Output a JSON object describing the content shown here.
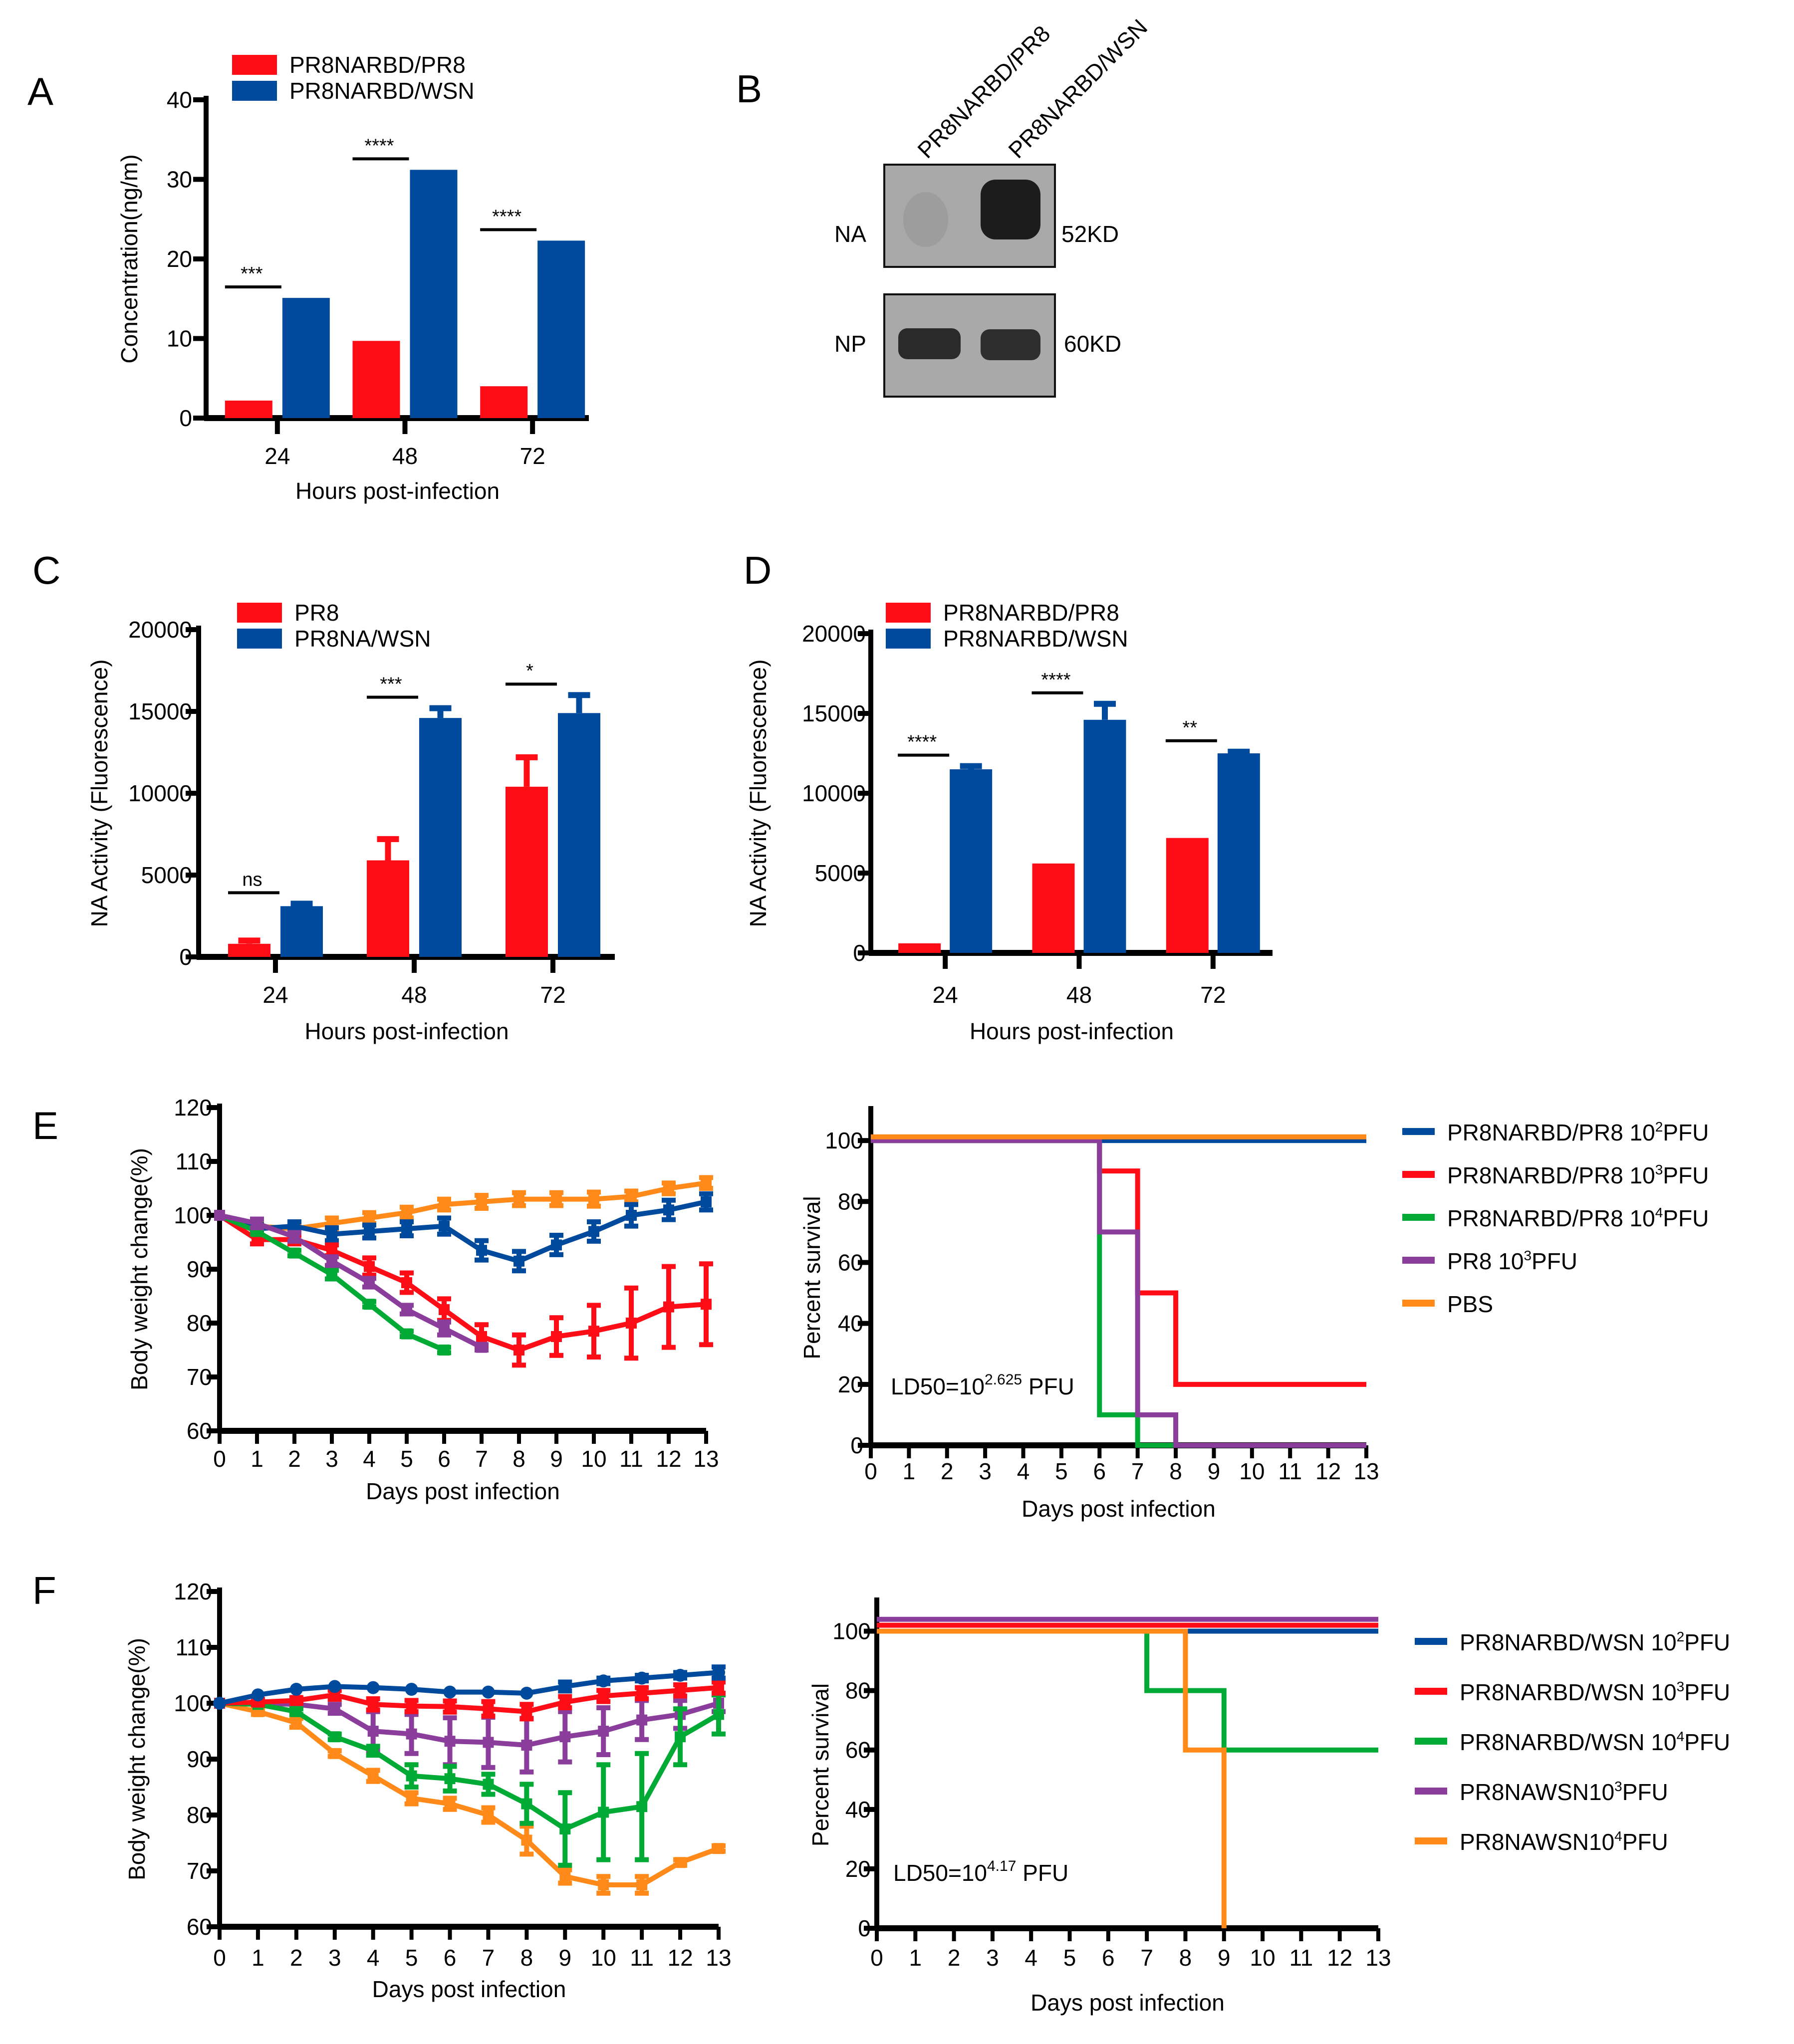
{
  "figure": {
    "panels": [
      "A",
      "B",
      "C",
      "D",
      "E",
      "F"
    ]
  },
  "colors": {
    "red": "#ff0d16",
    "blue": "#004a9e",
    "green": "#00aa34",
    "purple": "#8b3d9c",
    "orange": "#ff8a1a"
  },
  "blot": {
    "letter": "B",
    "lanes": [
      "PR8NARBD/PR8",
      "PR8NARBD/WSN"
    ],
    "rows": [
      {
        "protein": "NA",
        "size": "52KD",
        "intensity": [
          0.1,
          1.0
        ]
      },
      {
        "protein": "NP",
        "size": "60KD",
        "intensity": [
          0.9,
          0.85
        ]
      }
    ]
  },
  "chart_data": [
    {
      "id": "A",
      "letter": "A",
      "type": "bar",
      "title": "",
      "xlabel": "Hours post-infection",
      "ylabel": "Concentration(ng/m)",
      "categories": [
        "24",
        "48",
        "72"
      ],
      "ylim": [
        0,
        40
      ],
      "yticks": [
        0,
        10,
        20,
        30,
        40
      ],
      "series": [
        {
          "name": "PR8NARBD/PR8",
          "color": "red",
          "values": [
            2.2,
            9.7,
            4.0
          ],
          "err": [
            null,
            null,
            null
          ]
        },
        {
          "name": "PR8NARBD/WSN",
          "color": "blue",
          "values": [
            15.1,
            31.2,
            22.3
          ],
          "err": [
            null,
            null,
            null
          ]
        }
      ],
      "significance": [
        "***",
        "****",
        "****"
      ],
      "legend": "top"
    },
    {
      "id": "C",
      "letter": "C",
      "type": "bar",
      "title": "",
      "xlabel": "Hours post-infection",
      "ylabel": "NA Activity (Fluorescence)",
      "categories": [
        "24",
        "48",
        "72"
      ],
      "ylim": [
        0,
        20000
      ],
      "yticks": [
        0,
        5000,
        10000,
        15000,
        20000
      ],
      "series": [
        {
          "name": "PR8",
          "color": "red",
          "values": [
            800,
            5900,
            10400
          ],
          "err": [
            1000,
            7200,
            12200
          ]
        },
        {
          "name": "PR8NA/WSN",
          "color": "blue",
          "values": [
            3100,
            14600,
            14900
          ],
          "err": [
            3250,
            15200,
            16000
          ]
        }
      ],
      "significance": [
        "ns",
        "***",
        "*"
      ],
      "legend": "top"
    },
    {
      "id": "D",
      "letter": "D",
      "type": "bar",
      "title": "",
      "xlabel": "Hours post-infection",
      "ylabel": "NA Activity (Fluorescence)",
      "categories": [
        "24",
        "48",
        "72"
      ],
      "ylim": [
        0,
        20000
      ],
      "yticks": [
        0,
        5000,
        10000,
        15000,
        20000
      ],
      "series": [
        {
          "name": "PR8NARBD/PR8",
          "color": "red",
          "values": [
            600,
            5600,
            7200
          ],
          "err": [
            null,
            null,
            null
          ]
        },
        {
          "name": "PR8NARBD/WSN",
          "color": "blue",
          "values": [
            11500,
            14600,
            12500
          ],
          "err": [
            11700,
            15600,
            12600
          ]
        }
      ],
      "significance": [
        "****",
        "****",
        "**"
      ],
      "legend": "top"
    },
    {
      "id": "E-weight",
      "letter": "E",
      "type": "line",
      "title": "",
      "xlabel": "Days post infection",
      "ylabel": "Body weight change(%)",
      "x": [
        0,
        1,
        2,
        3,
        4,
        5,
        6,
        7,
        8,
        9,
        10,
        11,
        12,
        13
      ],
      "xticks": [
        0,
        1,
        2,
        3,
        4,
        5,
        6,
        7,
        8,
        9,
        10,
        11,
        12,
        13
      ],
      "ylim": [
        60,
        120
      ],
      "yticks": [
        60,
        70,
        80,
        90,
        100,
        110,
        120
      ],
      "series": [
        {
          "name": "PBS",
          "color": "orange",
          "values": [
            100,
            98,
            97.5,
            98.5,
            99.5,
            100.5,
            102,
            102.5,
            103,
            103,
            103,
            103.5,
            105,
            106
          ],
          "sd": [
            0.3,
            0.6,
            0.8,
            1,
            1,
            1,
            1,
            1.2,
            1.2,
            1.2,
            1.3,
            1,
            1,
            1
          ]
        },
        {
          "name": "PR8NARBD/PR8 10²PFU",
          "color": "blue",
          "values": [
            100,
            97.5,
            98,
            96.5,
            97,
            97.5,
            98,
            93.5,
            91.5,
            94.5,
            97,
            100,
            101,
            102.5
          ],
          "sd": [
            0.3,
            0.8,
            0.8,
            1.2,
            1.2,
            1.3,
            1.5,
            1.8,
            1.8,
            1.8,
            1.8,
            2,
            1.8,
            1.5
          ]
        },
        {
          "name": "PR8NARBD/PR8 10³PFU",
          "color": "red",
          "values": [
            100,
            95.5,
            95.5,
            93.5,
            90.5,
            87.5,
            82.5,
            77.5,
            75,
            77.5,
            78.5,
            80,
            83,
            83.5
          ],
          "sd": [
            0.3,
            0.8,
            0.8,
            1,
            1.6,
            1.8,
            2,
            2.2,
            2.8,
            3.5,
            4.8,
            6.5,
            7.5,
            7.5
          ]
        },
        {
          "name": "PR8NARBD/PR8 10⁴PFU",
          "color": "green",
          "values": [
            100,
            97,
            93,
            89,
            83.5,
            78,
            75
          ],
          "sd": [
            0.3,
            0.5,
            0.5,
            0.8,
            0.5,
            0.5,
            0.5
          ]
        },
        {
          "name": "PR8 10³PFU",
          "color": "purple",
          "values": [
            100,
            98.5,
            96,
            91.5,
            87.5,
            82.5,
            79,
            75.5
          ],
          "sd": [
            0.3,
            0.8,
            0.8,
            0.8,
            0.8,
            0.8,
            1.2,
            0.5
          ]
        }
      ],
      "legend": "none"
    },
    {
      "id": "E-survival",
      "letter": "",
      "type": "line",
      "step": true,
      "title": "",
      "xlabel": "Days post infection",
      "ylabel": "Percent survival",
      "x": [
        0,
        1,
        2,
        3,
        4,
        5,
        6,
        7,
        8,
        9,
        10,
        11,
        12,
        13
      ],
      "xticks": [
        0,
        1,
        2,
        3,
        4,
        5,
        6,
        7,
        8,
        9,
        10,
        11,
        12,
        13
      ],
      "ylim": [
        0,
        110
      ],
      "yticks": [
        0,
        20,
        40,
        60,
        80,
        100
      ],
      "annotation": {
        "base": "LD50=10",
        "exp": "2.625",
        "suffix": " PFU"
      },
      "series": [
        {
          "name": "PR8NARBD/PR8 10²PFU",
          "label": "PR8NARBD/PR8 10",
          "sup": "2",
          "unit": "PFU",
          "color": "blue",
          "steps": [
            [
              0,
              100
            ],
            [
              13,
              100
            ]
          ],
          "offset": 0
        },
        {
          "name": "PR8NARBD/PR8 10³PFU",
          "label": "PR8NARBD/PR8 10",
          "sup": "3",
          "unit": "PFU",
          "color": "red",
          "steps": [
            [
              0,
              100
            ],
            [
              6,
              90
            ],
            [
              7,
              50
            ],
            [
              8,
              20
            ],
            [
              13,
              20
            ]
          ],
          "offset": 0
        },
        {
          "name": "PR8NARBD/PR8 10⁴PFU",
          "label": "PR8NARBD/PR8 10",
          "sup": "4",
          "unit": "PFU",
          "color": "green",
          "steps": [
            [
              0,
              100
            ],
            [
              6,
              10
            ],
            [
              7,
              0
            ],
            [
              13,
              0
            ]
          ],
          "offset": 0
        },
        {
          "name": "PR8 10³PFU",
          "label": "PR8 10",
          "sup": "3",
          "unit": "PFU",
          "color": "purple",
          "steps": [
            [
              0,
              100
            ],
            [
              6,
              70
            ],
            [
              7,
              10
            ],
            [
              8,
              0
            ],
            [
              13,
              0
            ]
          ],
          "offset": 0
        },
        {
          "name": "PBS",
          "label": "PBS",
          "sup": "",
          "unit": "",
          "color": "orange",
          "steps": [
            [
              0,
              100
            ],
            [
              13,
              100
            ]
          ],
          "offset": 1.2
        }
      ],
      "legend": "right"
    },
    {
      "id": "F-weight",
      "letter": "F",
      "type": "line",
      "title": "",
      "xlabel": "Days post infection",
      "ylabel": "Body weight change(%)",
      "x": [
        0,
        1,
        2,
        3,
        4,
        5,
        6,
        7,
        8,
        9,
        10,
        11,
        12,
        13
      ],
      "xticks": [
        0,
        1,
        2,
        3,
        4,
        5,
        6,
        7,
        8,
        9,
        10,
        11,
        12,
        13
      ],
      "ylim": [
        60,
        120
      ],
      "yticks": [
        60,
        70,
        80,
        90,
        100,
        110,
        120
      ],
      "series": [
        {
          "name": "PR8NAWSN10⁴PFU",
          "color": "orange",
          "values": [
            100,
            98.5,
            96.5,
            91,
            87,
            83,
            82,
            80,
            75.5,
            69,
            67.5,
            67.5,
            71.5,
            74
          ],
          "sd": [
            0.3,
            0.5,
            0.8,
            0.5,
            1,
            1,
            1,
            1.3,
            2.5,
            1.2,
            1.5,
            1.5,
            0.5,
            0.5
          ]
        },
        {
          "name": "PR8NAWSN10³PFU",
          "color": "purple",
          "values": [
            100,
            100,
            99.8,
            99,
            95,
            94.5,
            93.2,
            93,
            92.5,
            94,
            95,
            97,
            98,
            100
          ],
          "sd": [
            0.3,
            0.3,
            0.5,
            0.8,
            3.5,
            3.5,
            4.2,
            4.5,
            4.8,
            4.5,
            4.2,
            3.5,
            2.5,
            1.5
          ]
        },
        {
          "name": "PR8NARBD/WSN 10⁴PFU",
          "color": "green",
          "values": [
            100,
            99.8,
            98.5,
            94,
            91.5,
            87,
            86.5,
            85.5,
            82,
            77.5,
            80.5,
            81.5,
            94,
            98
          ],
          "sd": [
            0.3,
            0.3,
            0.5,
            0.5,
            0.8,
            2,
            2.2,
            1.8,
            3.5,
            6.5,
            8.5,
            9.5,
            5,
            3.5
          ]
        },
        {
          "name": "PR8NARBD/WSN 10³PFU",
          "color": "red",
          "values": [
            100,
            100.2,
            100.5,
            101.5,
            99.8,
            99.5,
            99.4,
            99,
            98.5,
            100.2,
            101.3,
            101.8,
            102.3,
            102.8
          ],
          "sd": [
            0.3,
            0.5,
            0.5,
            0.8,
            1,
            1,
            1,
            1.3,
            1.3,
            1,
            1,
            1,
            1,
            1
          ]
        },
        {
          "name": "PR8NARBD/WSN 10²PFU",
          "color": "blue",
          "values": [
            100,
            101.5,
            102.5,
            103,
            102.8,
            102.5,
            102,
            102,
            101.8,
            103,
            104,
            104.5,
            105,
            105.5
          ],
          "sd": [
            0.3,
            0.3,
            0.3,
            0.3,
            0.3,
            0.3,
            0.3,
            0.3,
            0.3,
            0.8,
            0.5,
            0.5,
            0.5,
            1
          ]
        }
      ],
      "legend": "none"
    },
    {
      "id": "F-survival",
      "letter": "",
      "type": "line",
      "step": true,
      "title": "",
      "xlabel": "Days post infection",
      "ylabel": "Percent survival",
      "x": [
        0,
        1,
        2,
        3,
        4,
        5,
        6,
        7,
        8,
        9,
        10,
        11,
        12,
        13
      ],
      "xticks": [
        0,
        1,
        2,
        3,
        4,
        5,
        6,
        7,
        8,
        9,
        10,
        11,
        12,
        13
      ],
      "ylim": [
        0,
        110
      ],
      "yticks": [
        0,
        20,
        40,
        60,
        80,
        100
      ],
      "annotation": {
        "base": "LD50=10",
        "exp": "4.17",
        "suffix": " PFU"
      },
      "series": [
        {
          "name": "PR8NARBD/WSN 10²PFU",
          "label": "PR8NARBD/WSN 10",
          "sup": "2",
          "unit": "PFU",
          "color": "blue",
          "steps": [
            [
              0,
              100
            ],
            [
              13,
              100
            ]
          ],
          "offset": 0
        },
        {
          "name": "PR8NARBD/WSN 10³PFU",
          "label": "PR8NARBD/WSN 10",
          "sup": "3",
          "unit": "PFU",
          "color": "red",
          "steps": [
            [
              0,
              100
            ],
            [
              13,
              100
            ]
          ],
          "offset": 2
        },
        {
          "name": "PR8NARBD/WSN 10⁴PFU",
          "label": "PR8NARBD/WSN 10",
          "sup": "4",
          "unit": "PFU",
          "color": "green",
          "steps": [
            [
              0,
              100
            ],
            [
              7,
              80
            ],
            [
              9,
              60
            ],
            [
              13,
              60
            ]
          ],
          "offset": 0
        },
        {
          "name": "PR8NAWSN10³PFU",
          "label": "PR8NAWSN10",
          "sup": "3",
          "unit": "PFU",
          "color": "purple",
          "steps": [
            [
              0,
              100
            ],
            [
              13,
              100
            ]
          ],
          "offset": 4
        },
        {
          "name": "PR8NAWSN10⁴PFU",
          "label": "PR8NAWSN10",
          "sup": "4",
          "unit": "PFU",
          "color": "orange",
          "steps": [
            [
              0,
              100
            ],
            [
              8,
              80
            ],
            [
              8,
              60
            ],
            [
              9,
              0
            ]
          ],
          "offset": 0
        }
      ],
      "legend": "right"
    }
  ]
}
